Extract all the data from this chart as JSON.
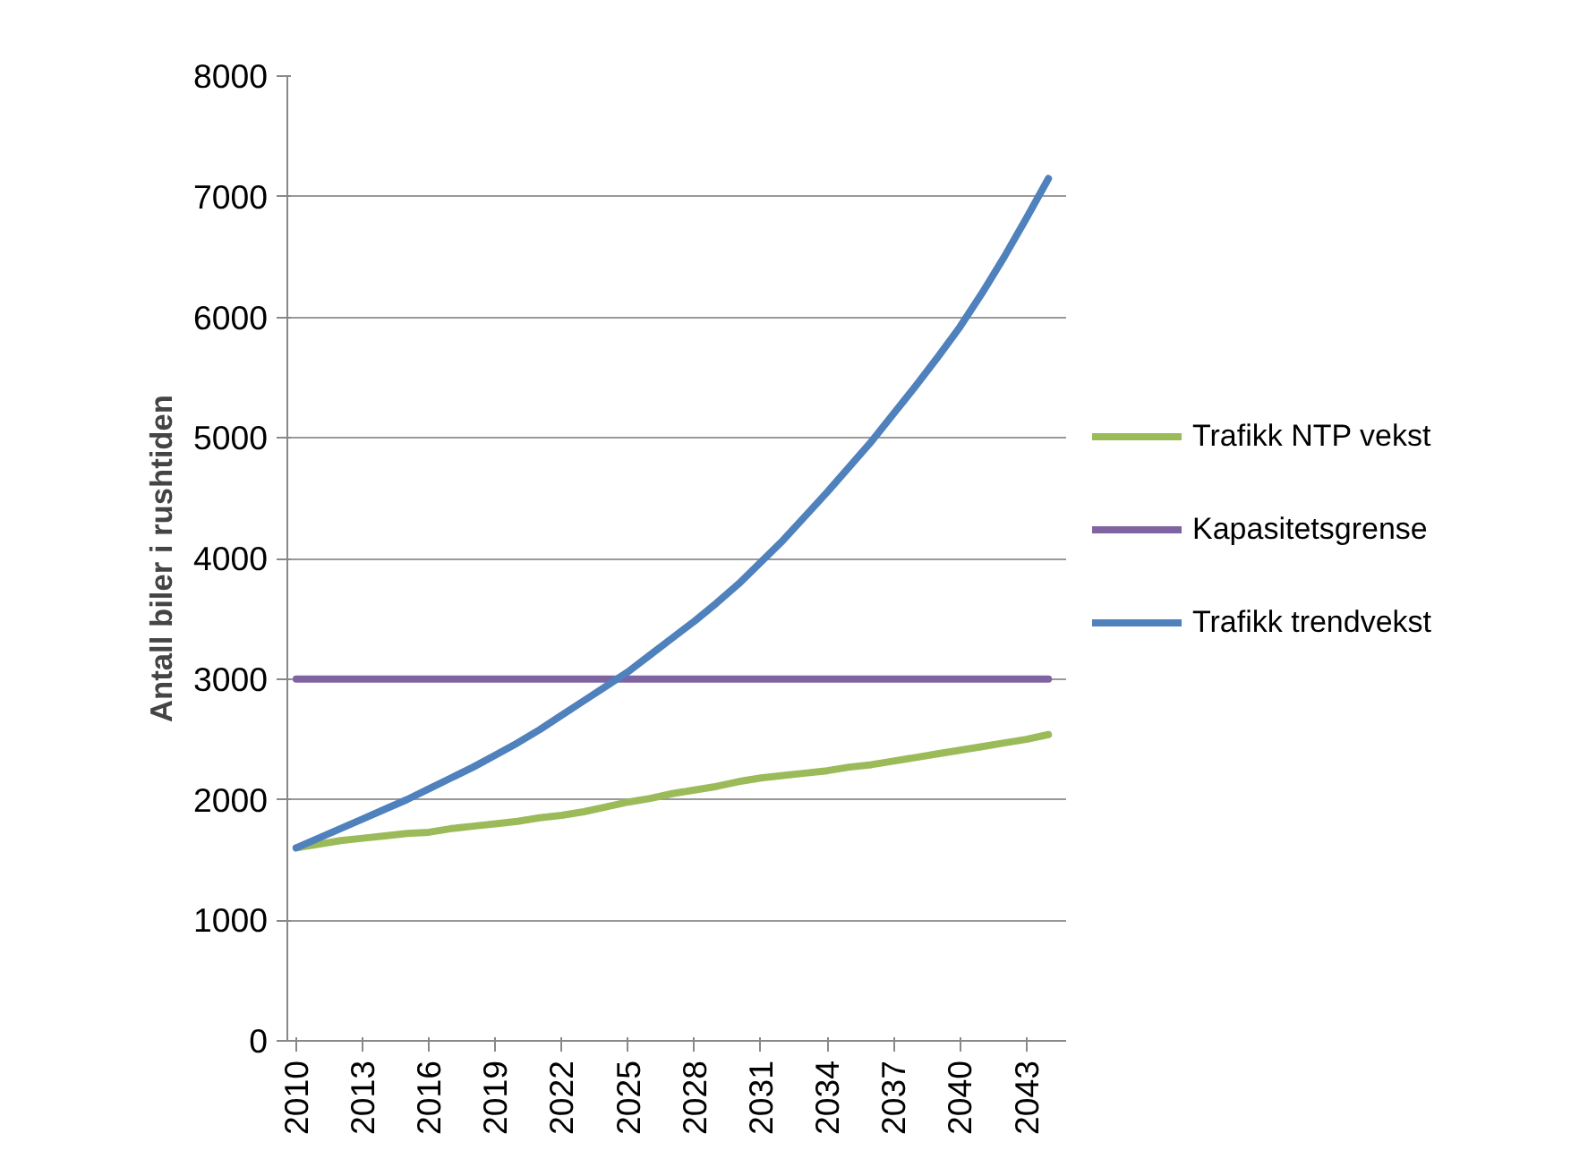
{
  "chart_data": {
    "type": "line",
    "ylabel": "Antall biler i rushtiden",
    "categories": [
      "2010",
      null,
      null,
      "2013",
      null,
      null,
      "2016",
      null,
      null,
      "2019",
      null,
      null,
      "2022",
      null,
      null,
      "2025",
      null,
      null,
      "2028",
      null,
      null,
      "2031",
      null,
      null,
      "2034",
      null,
      null,
      "2037",
      null,
      null,
      "2040",
      null,
      null,
      "2043",
      null
    ],
    "series": [
      {
        "name": "Trafikk NTP vekst",
        "color": "#9bbb59",
        "values": [
          1600,
          1630,
          1660,
          1680,
          1700,
          1720,
          1730,
          1760,
          1780,
          1800,
          1820,
          1850,
          1870,
          1900,
          1940,
          1980,
          2010,
          2050,
          2080,
          2110,
          2150,
          2180,
          2200,
          2220,
          2240,
          2270,
          2290,
          2320,
          2350,
          2380,
          2410,
          2440,
          2470,
          2500,
          2540
        ]
      },
      {
        "name": "Kapasitetsgrense",
        "color": "#8064a2",
        "values": [
          3000,
          3000,
          3000,
          3000,
          3000,
          3000,
          3000,
          3000,
          3000,
          3000,
          3000,
          3000,
          3000,
          3000,
          3000,
          3000,
          3000,
          3000,
          3000,
          3000,
          3000,
          3000,
          3000,
          3000,
          3000,
          3000,
          3000,
          3000,
          3000,
          3000,
          3000,
          3000,
          3000,
          3000,
          3000
        ]
      },
      {
        "name": "Trafikk trendvekst",
        "color": "#4f81bd",
        "values": [
          1600,
          1680,
          1760,
          1840,
          1920,
          2000,
          2090,
          2180,
          2270,
          2370,
          2470,
          2580,
          2700,
          2820,
          2940,
          3060,
          3200,
          3340,
          3480,
          3630,
          3790,
          3970,
          4150,
          4350,
          4550,
          4760,
          4970,
          5200,
          5430,
          5670,
          5920,
          6200,
          6500,
          6820,
          7150
        ]
      }
    ],
    "ylim": [
      0,
      8000
    ],
    "yticks": [
      0,
      1000,
      2000,
      3000,
      4000,
      5000,
      6000,
      7000,
      8000
    ],
    "grid": "y",
    "legend": "right",
    "marker": "none",
    "line_style": "solid"
  }
}
